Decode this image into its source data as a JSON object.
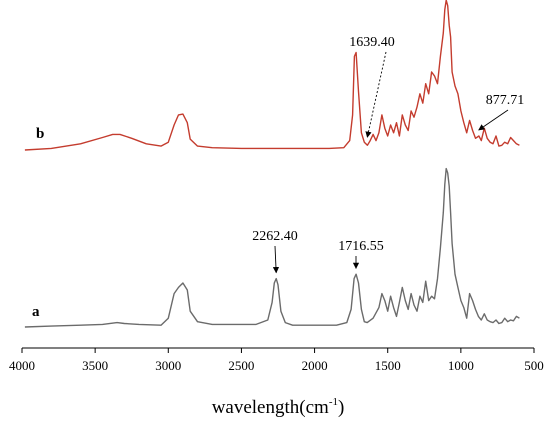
{
  "chart_data": {
    "type": "line",
    "xlabel": "wavelength",
    "xlabel_unit_open": "(cm",
    "xlabel_unit_sup": "-1",
    "xlabel_unit_close": ")",
    "xlim": [
      4000,
      500
    ],
    "x_ticks": [
      4000,
      3500,
      3000,
      2500,
      2000,
      1500,
      1000,
      500
    ],
    "grid": false,
    "y_axis_shown": false,
    "series": [
      {
        "name": "b",
        "color": "#c43c2e",
        "x": [
          3980,
          3800,
          3600,
          3450,
          3380,
          3330,
          3250,
          3150,
          3050,
          3000,
          2960,
          2930,
          2900,
          2870,
          2850,
          2800,
          2700,
          2500,
          2300,
          2100,
          1900,
          1800,
          1760,
          1740,
          1728,
          1716,
          1700,
          1680,
          1660,
          1639,
          1620,
          1600,
          1580,
          1560,
          1540,
          1520,
          1500,
          1480,
          1460,
          1440,
          1420,
          1400,
          1380,
          1360,
          1340,
          1320,
          1300,
          1280,
          1260,
          1240,
          1220,
          1200,
          1180,
          1160,
          1140,
          1120,
          1110,
          1100,
          1090,
          1080,
          1070,
          1060,
          1040,
          1020,
          1000,
          980,
          960,
          940,
          920,
          900,
          877,
          860,
          840,
          820,
          800,
          780,
          760,
          740,
          720,
          700,
          680,
          660,
          640,
          620,
          600
        ],
        "y": [
          0.0,
          0.02,
          0.08,
          0.16,
          0.2,
          0.2,
          0.15,
          0.08,
          0.05,
          0.1,
          0.32,
          0.45,
          0.46,
          0.35,
          0.14,
          0.05,
          0.03,
          0.02,
          0.02,
          0.02,
          0.02,
          0.03,
          0.12,
          0.45,
          1.2,
          1.25,
          0.75,
          0.22,
          0.1,
          0.06,
          0.12,
          0.2,
          0.12,
          0.22,
          0.45,
          0.28,
          0.18,
          0.32,
          0.22,
          0.35,
          0.18,
          0.45,
          0.32,
          0.25,
          0.5,
          0.42,
          0.55,
          0.72,
          0.6,
          0.85,
          0.72,
          1.0,
          0.95,
          0.85,
          1.2,
          1.5,
          1.8,
          1.92,
          1.85,
          1.6,
          1.45,
          1.0,
          0.82,
          0.72,
          0.5,
          0.35,
          0.22,
          0.38,
          0.25,
          0.15,
          0.18,
          0.12,
          0.28,
          0.15,
          0.1,
          0.08,
          0.18,
          0.05,
          0.06,
          0.1,
          0.08,
          0.16,
          0.12,
          0.08,
          0.06
        ]
      },
      {
        "name": "a",
        "color": "#6b6b6b",
        "x": [
          3980,
          3800,
          3600,
          3450,
          3350,
          3300,
          3200,
          3050,
          3000,
          2960,
          2930,
          2900,
          2870,
          2850,
          2800,
          2700,
          2500,
          2400,
          2320,
          2290,
          2275,
          2262,
          2250,
          2230,
          2200,
          2150,
          2000,
          1850,
          1780,
          1750,
          1730,
          1716,
          1700,
          1680,
          1660,
          1640,
          1600,
          1560,
          1540,
          1520,
          1500,
          1480,
          1460,
          1440,
          1420,
          1400,
          1380,
          1360,
          1340,
          1320,
          1300,
          1280,
          1260,
          1240,
          1220,
          1200,
          1180,
          1160,
          1140,
          1120,
          1110,
          1100,
          1090,
          1080,
          1070,
          1060,
          1040,
          1020,
          1000,
          980,
          960,
          940,
          920,
          900,
          880,
          860,
          840,
          820,
          800,
          780,
          760,
          740,
          720,
          700,
          680,
          660,
          640,
          620,
          600
        ],
        "y": [
          0.0,
          0.01,
          0.02,
          0.03,
          0.05,
          0.04,
          0.03,
          0.02,
          0.1,
          0.38,
          0.45,
          0.5,
          0.42,
          0.18,
          0.06,
          0.03,
          0.03,
          0.03,
          0.08,
          0.28,
          0.5,
          0.55,
          0.48,
          0.18,
          0.05,
          0.02,
          0.02,
          0.02,
          0.05,
          0.2,
          0.55,
          0.6,
          0.5,
          0.2,
          0.06,
          0.05,
          0.1,
          0.22,
          0.38,
          0.3,
          0.18,
          0.35,
          0.22,
          0.12,
          0.28,
          0.45,
          0.3,
          0.2,
          0.38,
          0.25,
          0.18,
          0.35,
          0.28,
          0.52,
          0.3,
          0.35,
          0.32,
          0.55,
          0.9,
          1.3,
          1.62,
          1.8,
          1.75,
          1.6,
          1.3,
          0.95,
          0.6,
          0.45,
          0.3,
          0.22,
          0.1,
          0.38,
          0.3,
          0.2,
          0.12,
          0.08,
          0.15,
          0.08,
          0.06,
          0.05,
          0.08,
          0.04,
          0.05,
          0.1,
          0.06,
          0.08,
          0.07,
          0.12,
          0.1
        ]
      }
    ],
    "annotations": [
      {
        "series": "b",
        "text": "1639.40",
        "x": 1639.4,
        "style": "dotted"
      },
      {
        "series": "b",
        "text": "877.71",
        "x": 877.71,
        "style": "solid"
      },
      {
        "series": "a",
        "text": "2262.40",
        "x": 2262.4,
        "style": "solid"
      },
      {
        "series": "a",
        "text": "1716.55",
        "x": 1716.55,
        "style": "solid"
      }
    ]
  }
}
